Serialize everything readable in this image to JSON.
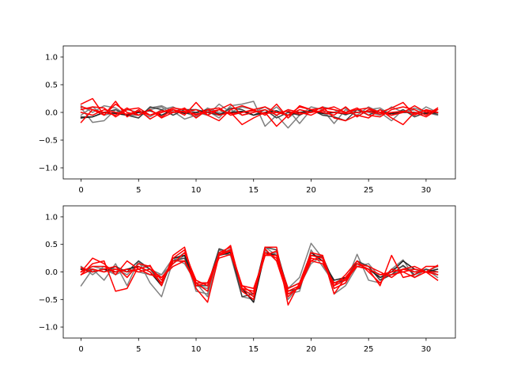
{
  "chart_data": [
    {
      "type": "line",
      "title": "",
      "xlabel": "",
      "ylabel": "",
      "xlim": [
        -1.55,
        32.55
      ],
      "ylim": [
        -1.2,
        1.2
      ],
      "xticks": [
        0,
        5,
        10,
        15,
        20,
        25,
        30
      ],
      "xtick_labels": [
        "0",
        "5",
        "10",
        "15",
        "20",
        "25",
        "30"
      ],
      "yticks": [
        -1.0,
        -0.5,
        0.0,
        0.5,
        1.0
      ],
      "ytick_labels": [
        "−1.0",
        "−0.5",
        "0.0",
        "0.5",
        "1.0"
      ],
      "grid": false,
      "x": [
        0,
        1,
        2,
        3,
        4,
        5,
        6,
        7,
        8,
        9,
        10,
        11,
        12,
        13,
        14,
        15,
        16,
        17,
        18,
        19,
        20,
        21,
        22,
        23,
        24,
        25,
        26,
        27,
        28,
        29,
        30,
        31
      ],
      "series": [
        {
          "color": "#808080",
          "values": [
            0.08,
            -0.18,
            -0.15,
            0.05,
            -0.05,
            -0.1,
            0.08,
            0.12,
            0.02,
            -0.12,
            -0.05,
            0.03,
            -0.1,
            0.12,
            0.15,
            0.2,
            -0.25,
            -0.05,
            -0.28,
            -0.05,
            0.1,
            0.05,
            -0.2,
            0.05,
            -0.05,
            0.1,
            0.0,
            -0.15,
            0.05,
            -0.05,
            0.1,
            0.0
          ]
        },
        {
          "color": "#808080",
          "values": [
            0.12,
            0.0,
            0.12,
            0.08,
            -0.05,
            -0.05,
            0.05,
            0.1,
            -0.05,
            0.05,
            0.0,
            -0.05,
            0.15,
            0.0,
            0.1,
            0.05,
            -0.05,
            0.1,
            -0.1,
            0.05,
            0.0,
            0.1,
            0.05,
            -0.05,
            0.05,
            0.0,
            -0.05,
            0.1,
            0.0,
            0.05,
            -0.05,
            0.05
          ]
        },
        {
          "color": "#808080",
          "values": [
            -0.05,
            0.1,
            -0.05,
            0.0,
            0.05,
            0.0,
            -0.08,
            0.05,
            0.1,
            0.0,
            -0.08,
            0.08,
            0.0,
            0.05,
            -0.05,
            0.0,
            0.1,
            -0.05,
            0.05,
            -0.2,
            0.05,
            -0.05,
            0.0,
            0.08,
            -0.08,
            0.05,
            0.08,
            -0.05,
            0.0,
            0.08,
            0.0,
            -0.05
          ]
        },
        {
          "color": "#404040",
          "values": [
            -0.08,
            -0.08,
            0.0,
            0.05,
            -0.05,
            -0.1,
            0.1,
            0.05,
            -0.05,
            0.05,
            0.05,
            0.0,
            -0.05,
            0.08,
            0.05,
            -0.05,
            0.05,
            -0.1,
            0.0,
            -0.05,
            0.05,
            -0.05,
            -0.08,
            -0.15,
            0.05,
            -0.05,
            0.05,
            -0.05,
            0.05,
            -0.08,
            0.0,
            -0.03
          ]
        },
        {
          "color": "#202020",
          "values": [
            -0.1,
            -0.08,
            0.0,
            -0.02,
            -0.05,
            0.0,
            0.03,
            -0.05,
            0.05,
            -0.02,
            0.0,
            0.05,
            -0.03,
            0.0,
            0.02,
            -0.05,
            0.0,
            0.03,
            -0.05,
            0.0,
            0.03,
            -0.02,
            0.0,
            -0.03,
            0.0,
            0.02,
            0.0,
            -0.02,
            0.0,
            0.0,
            -0.02,
            0.0
          ]
        },
        {
          "color": "#ff0000",
          "values": [
            0.15,
            0.25,
            -0.05,
            0.2,
            -0.08,
            0.05,
            -0.12,
            0.0,
            0.05,
            -0.05,
            0.18,
            -0.05,
            -0.15,
            0.05,
            0.12,
            0.05,
            -0.05,
            0.15,
            -0.1,
            0.12,
            0.05,
            0.0,
            -0.05,
            0.1,
            -0.08,
            0.05,
            0.0,
            0.08,
            0.18,
            -0.05,
            0.05,
            0.0
          ]
        },
        {
          "color": "#ff0000",
          "values": [
            -0.18,
            0.05,
            0.0,
            -0.05,
            0.08,
            -0.05,
            0.05,
            -0.1,
            0.0,
            0.08,
            -0.1,
            0.05,
            -0.05,
            0.0,
            -0.22,
            -0.1,
            0.0,
            -0.25,
            -0.05,
            0.05,
            0.0,
            0.1,
            -0.1,
            -0.15,
            -0.05,
            -0.1,
            0.05,
            -0.1,
            -0.22,
            0.0,
            -0.08,
            0.05
          ]
        },
        {
          "color": "#ff0000",
          "values": [
            0.05,
            0.1,
            0.08,
            -0.08,
            0.05,
            0.08,
            -0.05,
            0.0,
            0.08,
            0.05,
            -0.05,
            0.05,
            0.08,
            -0.05,
            0.0,
            0.05,
            0.1,
            0.0,
            -0.05,
            0.1,
            0.05,
            0.08,
            0.05,
            0.0,
            0.08,
            -0.05,
            -0.08,
            0.05,
            0.1,
            0.05,
            -0.05,
            0.08
          ]
        },
        {
          "color": "#ff0000",
          "values": [
            0.1,
            0.05,
            -0.05,
            0.15,
            0.0,
            -0.05,
            0.05,
            -0.08,
            0.05,
            0.0,
            0.05,
            -0.05,
            0.05,
            0.15,
            -0.05,
            0.0,
            0.05,
            -0.05,
            0.05,
            0.0,
            -0.05,
            0.05,
            0.1,
            0.0,
            0.05,
            0.08,
            0.0,
            -0.05,
            0.0,
            0.12,
            0.0,
            0.05
          ]
        },
        {
          "color": "#ff0000",
          "values": [
            0.0,
            -0.05,
            0.05,
            0.0,
            -0.03,
            0.02,
            -0.05,
            0.03,
            0.0,
            0.02,
            -0.03,
            0.0,
            0.05,
            -0.02,
            0.0,
            0.03,
            -0.02,
            0.0,
            0.02,
            -0.03,
            0.0,
            0.03,
            0.0,
            -0.02,
            0.0,
            0.02,
            -0.03,
            0.0,
            0.02,
            -0.02,
            0.03,
            0.0
          ]
        }
      ]
    },
    {
      "type": "line",
      "title": "",
      "xlabel": "",
      "ylabel": "",
      "xlim": [
        -1.55,
        32.55
      ],
      "ylim": [
        -1.2,
        1.2
      ],
      "xticks": [
        0,
        5,
        10,
        15,
        20,
        25,
        30
      ],
      "xtick_labels": [
        "0",
        "5",
        "10",
        "15",
        "20",
        "25",
        "30"
      ],
      "yticks": [
        -1.0,
        -0.5,
        0.0,
        0.5,
        1.0
      ],
      "ytick_labels": [
        "−1.0",
        "−0.5",
        "0.0",
        "0.5",
        "1.0"
      ],
      "grid": false,
      "x": [
        0,
        1,
        2,
        3,
        4,
        5,
        6,
        7,
        8,
        9,
        10,
        11,
        12,
        13,
        14,
        15,
        16,
        17,
        18,
        19,
        20,
        21,
        22,
        23,
        24,
        25,
        26,
        27,
        28,
        29,
        30,
        31
      ],
      "series": [
        {
          "color": "#808080",
          "values": [
            -0.25,
            0.05,
            -0.15,
            0.15,
            -0.25,
            0.2,
            -0.2,
            -0.45,
            0.2,
            0.35,
            -0.25,
            -0.3,
            0.4,
            0.3,
            -0.35,
            -0.4,
            0.3,
            0.35,
            -0.3,
            -0.1,
            0.52,
            0.25,
            -0.3,
            -0.2,
            0.32,
            -0.15,
            -0.2,
            0.05,
            0.22,
            -0.1,
            0.05,
            -0.1
          ]
        },
        {
          "color": "#808080",
          "values": [
            0.1,
            -0.05,
            0.1,
            0.05,
            -0.05,
            0.15,
            0.05,
            -0.05,
            0.25,
            0.15,
            -0.2,
            -0.45,
            0.3,
            0.42,
            -0.3,
            -0.55,
            0.4,
            0.2,
            -0.4,
            -0.35,
            0.4,
            0.1,
            -0.2,
            -0.1,
            0.15,
            0.1,
            -0.15,
            0.05,
            0.1,
            0.0,
            0.05,
            -0.05
          ]
        },
        {
          "color": "#808080",
          "values": [
            0.0,
            0.1,
            0.05,
            -0.05,
            0.05,
            0.0,
            -0.05,
            -0.05,
            0.15,
            0.3,
            -0.35,
            -0.4,
            0.35,
            0.3,
            -0.45,
            -0.5,
            0.45,
            0.3,
            -0.5,
            -0.25,
            0.15,
            0.3,
            -0.4,
            -0.25,
            0.1,
            0.15,
            -0.1,
            -0.05,
            0.05,
            0.05,
            0.0,
            0.1
          ]
        },
        {
          "color": "#404040",
          "values": [
            0.05,
            0.05,
            0.0,
            0.1,
            0.0,
            0.2,
            0.05,
            -0.2,
            0.2,
            0.25,
            -0.25,
            -0.25,
            0.42,
            0.35,
            -0.45,
            -0.4,
            0.45,
            0.4,
            -0.35,
            -0.3,
            0.3,
            0.28,
            -0.2,
            -0.15,
            0.2,
            0.1,
            -0.15,
            -0.05,
            0.12,
            -0.05,
            0.05,
            0.0
          ]
        },
        {
          "color": "#202020",
          "values": [
            0.05,
            0.0,
            0.05,
            0.0,
            0.05,
            0.1,
            0.0,
            -0.25,
            0.25,
            0.3,
            -0.2,
            -0.2,
            0.3,
            0.35,
            -0.3,
            -0.55,
            0.35,
            0.3,
            -0.3,
            -0.2,
            0.35,
            0.2,
            -0.15,
            -0.1,
            0.15,
            0.05,
            -0.1,
            0.0,
            0.2,
            0.05,
            0.0,
            0.05
          ]
        },
        {
          "color": "#ff0000",
          "values": [
            0.0,
            0.25,
            0.15,
            -0.05,
            0.2,
            0.05,
            0.12,
            -0.25,
            0.3,
            0.45,
            -0.3,
            -0.55,
            0.3,
            0.48,
            -0.35,
            -0.5,
            0.45,
            0.45,
            -0.6,
            -0.2,
            0.35,
            0.3,
            -0.4,
            -0.1,
            0.15,
            0.05,
            -0.25,
            0.3,
            -0.1,
            -0.05,
            0.1,
            0.1
          ]
        },
        {
          "color": "#ff0000",
          "values": [
            -0.05,
            0.15,
            0.2,
            -0.35,
            -0.3,
            0.1,
            0.0,
            -0.2,
            0.25,
            0.4,
            -0.2,
            -0.35,
            0.35,
            0.45,
            -0.3,
            -0.45,
            0.42,
            0.2,
            -0.45,
            -0.25,
            0.3,
            0.25,
            -0.25,
            -0.05,
            0.2,
            0.0,
            -0.2,
            0.05,
            0.0,
            -0.1,
            0.0,
            0.12
          ]
        },
        {
          "color": "#ff0000",
          "values": [
            0.08,
            0.0,
            0.05,
            0.1,
            -0.1,
            0.15,
            0.1,
            -0.15,
            0.2,
            0.2,
            -0.25,
            -0.2,
            0.32,
            0.4,
            -0.25,
            -0.4,
            0.3,
            0.38,
            -0.4,
            -0.28,
            0.2,
            0.3,
            -0.3,
            -0.2,
            0.15,
            0.1,
            0.0,
            -0.1,
            0.05,
            0.1,
            0.0,
            -0.15
          ]
        },
        {
          "color": "#ff0000",
          "values": [
            0.0,
            0.1,
            0.1,
            0.0,
            0.05,
            0.0,
            0.05,
            -0.1,
            0.15,
            0.35,
            -0.15,
            -0.25,
            0.3,
            0.38,
            -0.3,
            -0.35,
            0.35,
            0.25,
            -0.35,
            -0.25,
            0.25,
            0.2,
            -0.25,
            -0.15,
            0.1,
            0.05,
            -0.05,
            -0.05,
            0.0,
            0.05,
            0.0,
            -0.05
          ]
        },
        {
          "color": "#ff0000",
          "values": [
            -0.05,
            0.05,
            0.0,
            0.05,
            0.0,
            0.05,
            -0.05,
            -0.1,
            0.1,
            0.2,
            -0.2,
            -0.2,
            0.25,
            0.32,
            -0.25,
            -0.3,
            0.3,
            0.3,
            -0.3,
            -0.2,
            0.2,
            0.15,
            -0.2,
            -0.12,
            0.1,
            0.05,
            -0.05,
            0.0,
            0.05,
            0.0,
            0.0,
            0.0
          ]
        }
      ]
    }
  ]
}
